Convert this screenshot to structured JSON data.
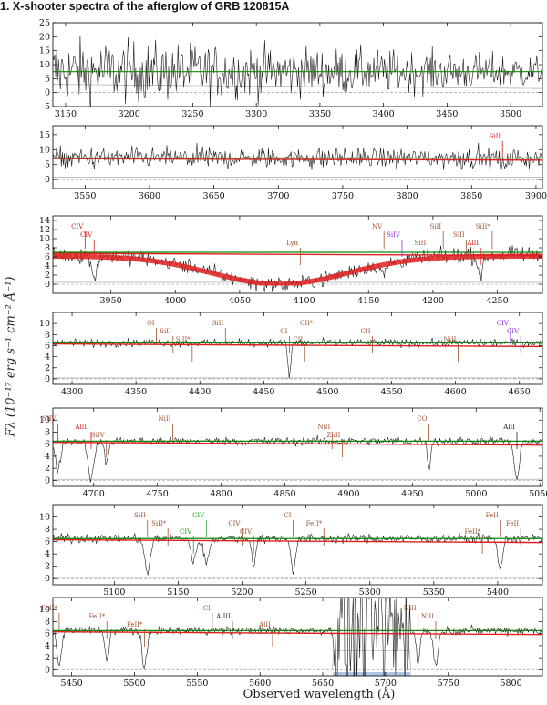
{
  "figure": {
    "title": "1. X-shooter spectra of the afterglow of GRB 120815A",
    "xlabel": "Observed wavelength (Å)",
    "ylabel": "Fλ (10⁻¹⁷ erg s⁻¹ cm⁻² Å⁻¹)"
  },
  "colors": {
    "spectrum": "#1a1a1a",
    "error": "#9a9a9a",
    "continuum": "#0a8a0a",
    "model": "#e02020",
    "line_default": "#a0522d",
    "line_red": "#d62020",
    "line_purple": "#8a2be2",
    "line_green": "#1aa01a",
    "line_black": "#222222",
    "telluric": "#9ab6e0"
  },
  "chart_data": [
    {
      "type": "line",
      "panel": 1,
      "xlim": [
        3140,
        3525
      ],
      "ylim": [
        -5,
        25
      ],
      "xticks": [
        3150,
        3200,
        3250,
        3300,
        3350,
        3400,
        3450,
        3500
      ],
      "yticks": [
        -5,
        0,
        5,
        10,
        15,
        20,
        25
      ],
      "continuum": 7.5,
      "noise": 6.0,
      "continuum_model": false,
      "lines": []
    },
    {
      "type": "line",
      "panel": 2,
      "xlim": [
        3525,
        3905
      ],
      "ylim": [
        -3,
        18
      ],
      "xticks": [
        3550,
        3600,
        3650,
        3700,
        3750,
        3800,
        3850,
        3900
      ],
      "yticks": [
        0,
        5,
        10,
        15
      ],
      "continuum": 7.2,
      "noise": 2.5,
      "continuum_model": true,
      "lines": [
        {
          "wl": 3874,
          "label": "SiII",
          "color": "red"
        }
      ]
    },
    {
      "type": "line",
      "panel": 3,
      "xlim": [
        3905,
        4285
      ],
      "ylim": [
        -2,
        15
      ],
      "xticks": [
        3950,
        4000,
        4050,
        4100,
        4150,
        4200,
        4250
      ],
      "yticks": [
        0,
        2,
        4,
        6,
        8,
        10,
        12,
        14
      ],
      "continuum": 7.0,
      "noise": 1.2,
      "continuum_model": true,
      "dla": {
        "center": 4081,
        "width": 110
      },
      "lines": [
        {
          "wl": 3930,
          "label": "CIV",
          "color": "red"
        },
        {
          "wl": 3937,
          "label": "CIV",
          "color": "red"
        },
        {
          "wl": 4097,
          "label": "Lyα",
          "color": "default"
        },
        {
          "wl": 4162,
          "label": "NV",
          "color": "default"
        },
        {
          "wl": 4176,
          "label": "SiIV",
          "color": "purple"
        },
        {
          "wl": 4196,
          "label": "SiII",
          "color": "default"
        },
        {
          "wl": 4208,
          "label": "SiII",
          "color": "default"
        },
        {
          "wl": 4226,
          "label": "SiII",
          "color": "default"
        },
        {
          "wl": 4237,
          "label": "AlII",
          "color": "red"
        },
        {
          "wl": 4246,
          "label": "SiII*",
          "color": "default"
        }
      ]
    },
    {
      "type": "line",
      "panel": 4,
      "xlim": [
        4285,
        4668
      ],
      "ylim": [
        -1,
        12
      ],
      "xticks": [
        4300,
        4350,
        4400,
        4450,
        4500,
        4550,
        4600,
        4650
      ],
      "yticks": [
        0,
        2,
        4,
        6,
        8,
        10
      ],
      "continuum": 6.5,
      "noise": 0.5,
      "continuum_model": true,
      "lines": [
        {
          "wl": 4366,
          "label": "OI",
          "color": "default"
        },
        {
          "wl": 4379,
          "label": "SiII",
          "color": "default"
        },
        {
          "wl": 4394,
          "label": "SiII*",
          "color": "default"
        },
        {
          "wl": 4420,
          "label": "SiII",
          "color": "default"
        },
        {
          "wl": 4470,
          "label": "CI",
          "color": "default"
        },
        {
          "wl": 4482,
          "label": "CII",
          "color": "default"
        },
        {
          "wl": 4490,
          "label": "CII*",
          "color": "default"
        },
        {
          "wl": 4535,
          "label": "CII",
          "color": "default"
        },
        {
          "wl": 4602,
          "label": "NiII",
          "color": "default"
        },
        {
          "wl": 4643,
          "label": "CIV",
          "color": "purple"
        },
        {
          "wl": 4651,
          "label": "CIV",
          "color": "purple"
        }
      ]
    },
    {
      "type": "line",
      "panel": 5,
      "xlim": [
        4668,
        5052
      ],
      "ylim": [
        -1,
        12
      ],
      "xticks": [
        4700,
        4750,
        4800,
        4850,
        4900,
        4950,
        5000,
        5050
      ],
      "yticks": [
        0,
        2,
        4,
        6,
        8,
        10
      ],
      "continuum": 6.5,
      "noise": 0.5,
      "continuum_model": true,
      "lines": [
        {
          "wl": 4672,
          "label": "SiIV",
          "color": "red"
        },
        {
          "wl": 4698,
          "label": "AlIII",
          "color": "red"
        },
        {
          "wl": 4710,
          "label": "SiIV",
          "color": "default"
        },
        {
          "wl": 4762,
          "label": "NiII",
          "color": "default"
        },
        {
          "wl": 4887,
          "label": "NiII",
          "color": "default"
        },
        {
          "wl": 4895,
          "label": "ZnII",
          "color": "default"
        },
        {
          "wl": 4963,
          "label": "CO",
          "color": "default"
        },
        {
          "wl": 5032,
          "label": "AlII",
          "color": "black"
        }
      ]
    },
    {
      "type": "line",
      "panel": 6,
      "xlim": [
        5052,
        5435
      ],
      "ylim": [
        -1,
        12
      ],
      "xticks": [
        5100,
        5150,
        5200,
        5250,
        5300,
        5350,
        5400
      ],
      "yticks": [
        0,
        2,
        4,
        6,
        8,
        10
      ],
      "continuum": 6.5,
      "noise": 0.5,
      "continuum_model": true,
      "lines": [
        {
          "wl": 5126,
          "label": "SiII",
          "color": "default"
        },
        {
          "wl": 5142,
          "label": "SiII*",
          "color": "default"
        },
        {
          "wl": 5162,
          "label": "CIV",
          "color": "green"
        },
        {
          "wl": 5172,
          "label": "CIV",
          "color": "green"
        },
        {
          "wl": 5200,
          "label": "CIV",
          "color": "default"
        },
        {
          "wl": 5209,
          "label": "CIV",
          "color": "default"
        },
        {
          "wl": 5240,
          "label": "CI",
          "color": "default"
        },
        {
          "wl": 5264,
          "label": "FeII*",
          "color": "default"
        },
        {
          "wl": 5388,
          "label": "FeII*",
          "color": "default"
        },
        {
          "wl": 5402,
          "label": "FeII",
          "color": "default"
        },
        {
          "wl": 5418,
          "label": "FeII",
          "color": "default"
        }
      ]
    },
    {
      "type": "line",
      "panel": 7,
      "xlim": [
        5435,
        5825
      ],
      "ylim": [
        -1,
        12
      ],
      "xticks": [
        5450,
        5500,
        5550,
        5600,
        5650,
        5700,
        5750,
        5800
      ],
      "yticks": [
        0,
        2,
        4,
        6,
        8,
        10
      ],
      "continuum": 6.5,
      "noise": 0.5,
      "continuum_model": true,
      "telluric": [
        5658,
        5720
      ],
      "lines": [
        {
          "wl": 5440,
          "label": "FeII*",
          "color": "default"
        },
        {
          "wl": 5478,
          "label": "FeII*",
          "color": "default"
        },
        {
          "wl": 5508,
          "label": "FeII*",
          "color": "default"
        },
        {
          "wl": 5562,
          "label": "CI",
          "color": "default"
        },
        {
          "wl": 5578,
          "label": "AlIII",
          "color": "black"
        },
        {
          "wl": 5610,
          "label": "AlII",
          "color": "default"
        },
        {
          "wl": 5726,
          "label": "NiII",
          "color": "default"
        },
        {
          "wl": 5740,
          "label": "NiII",
          "color": "default"
        }
      ]
    }
  ]
}
